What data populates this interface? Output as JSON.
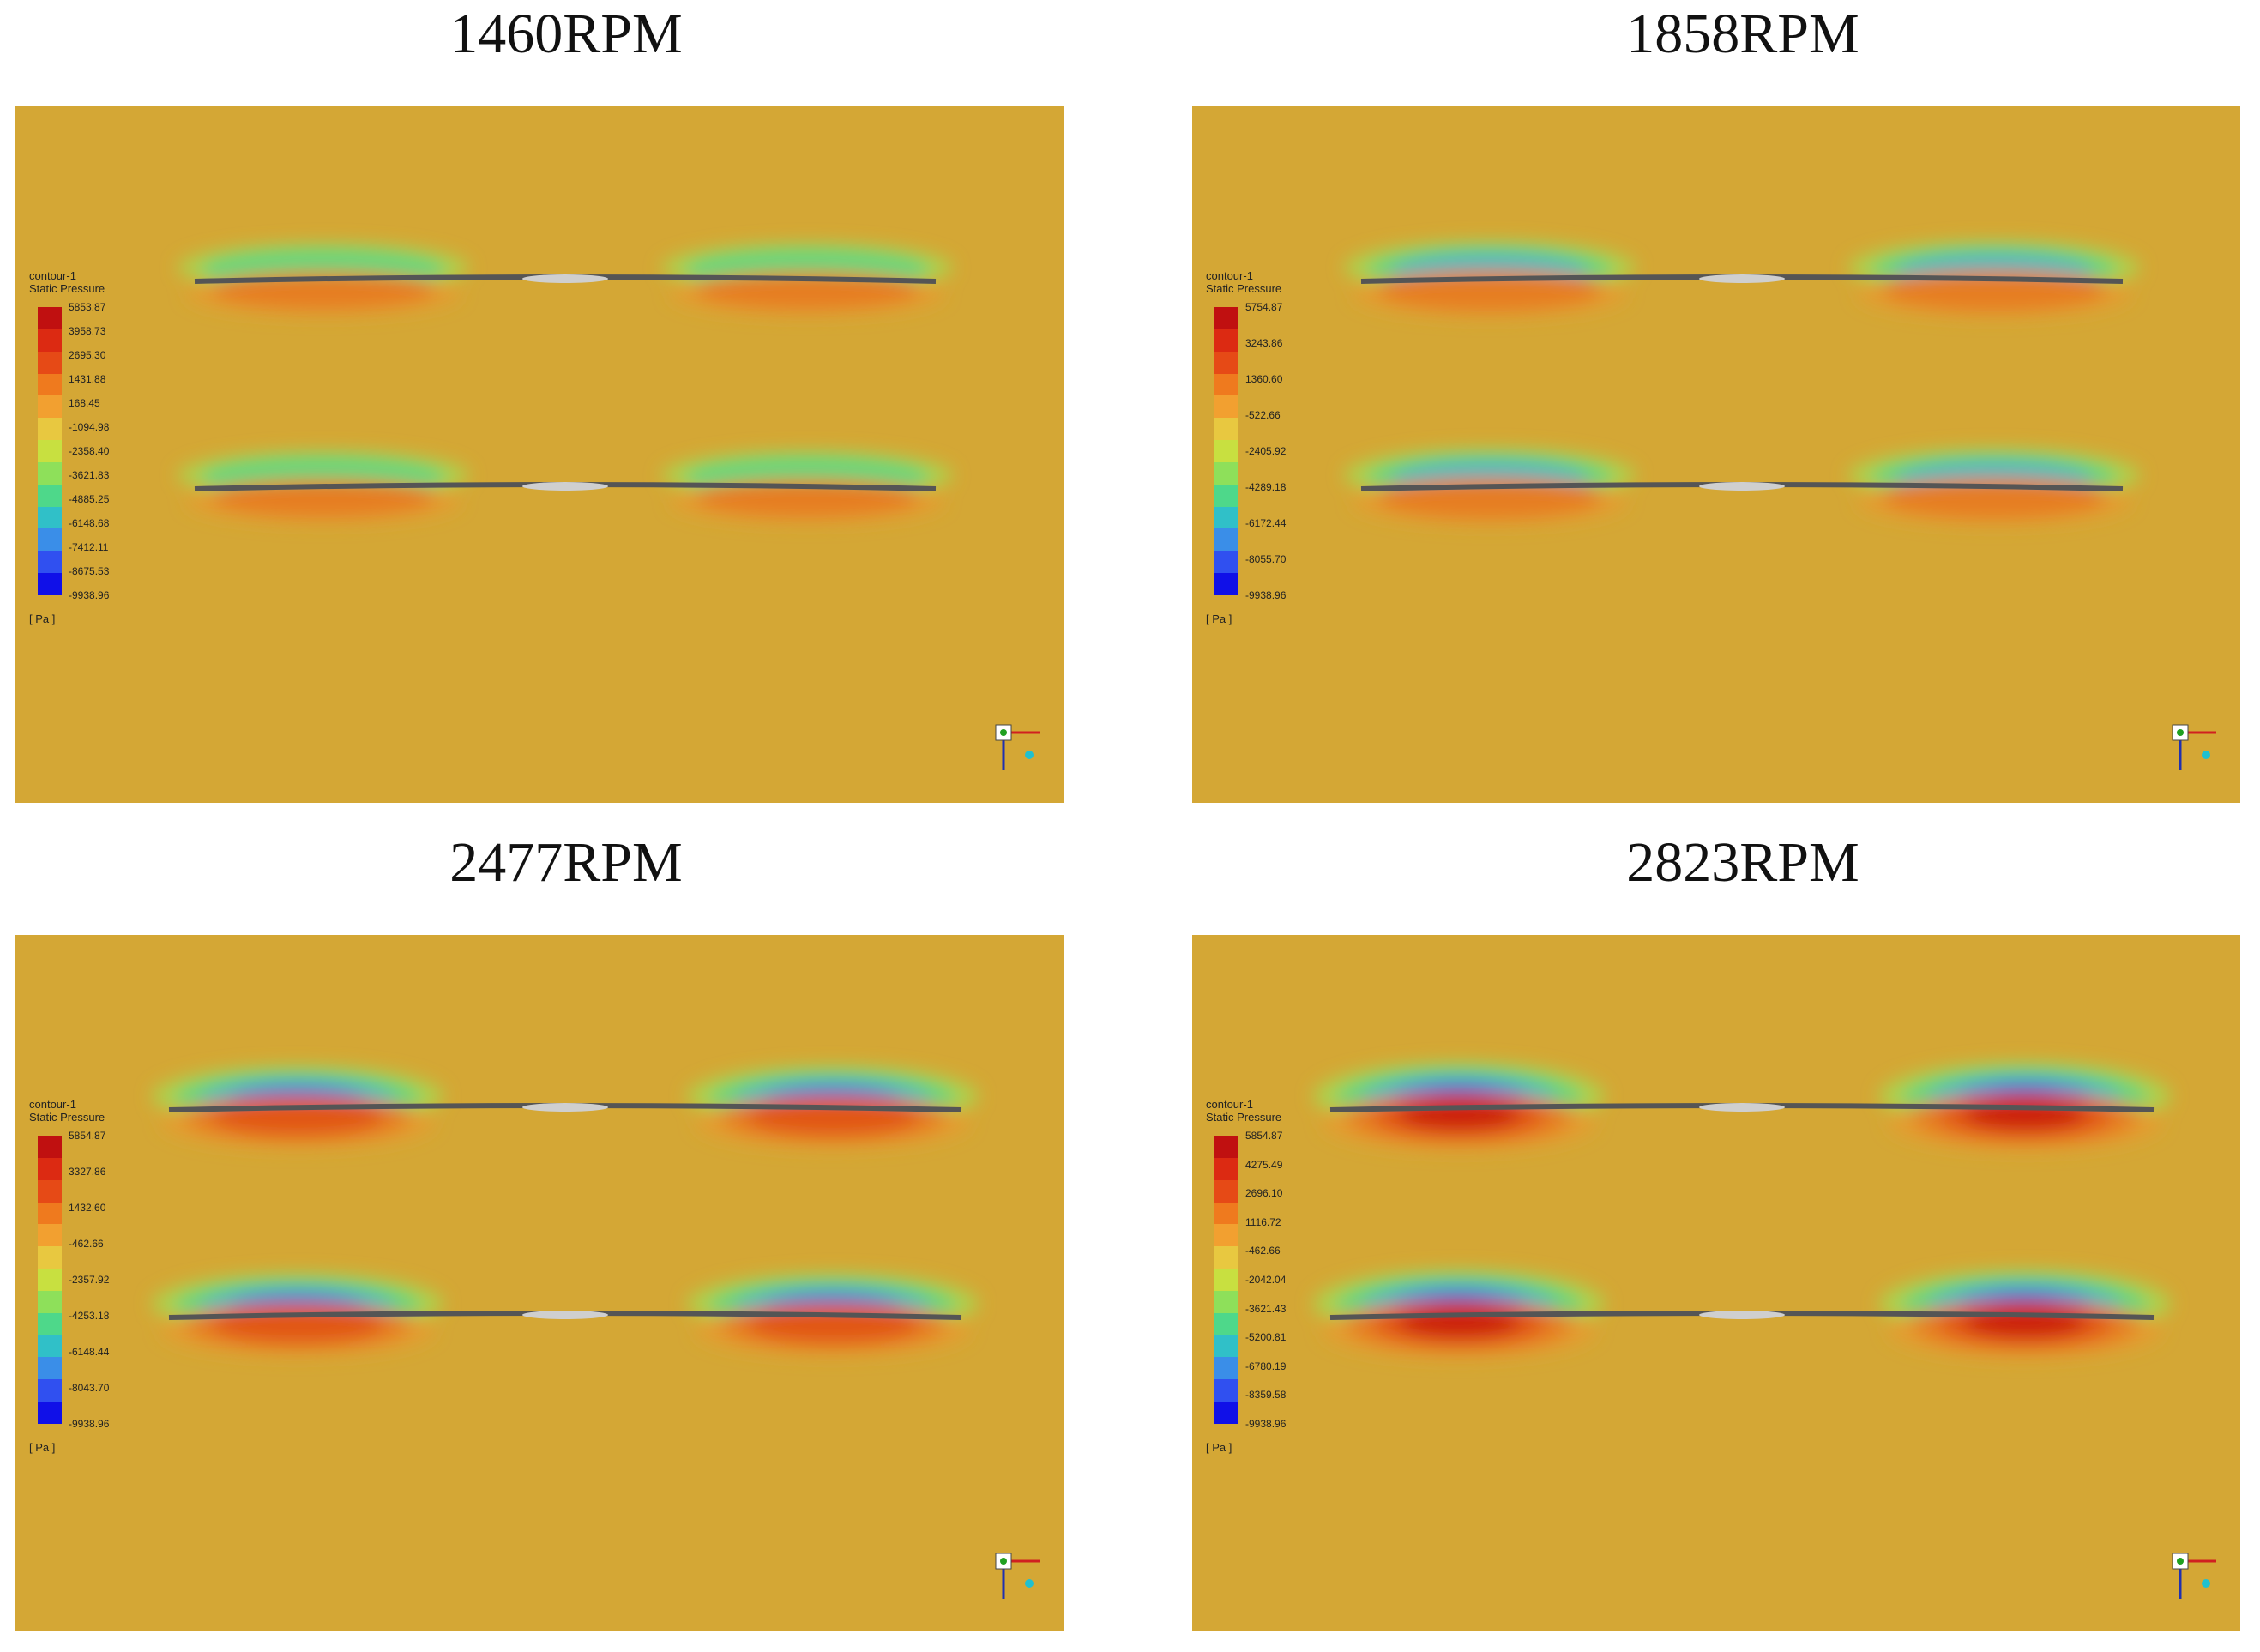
{
  "panels": [
    {
      "title": "1460RPM",
      "legend": {
        "name": "contour-1",
        "variable": "Static Pressure",
        "unit": "[ Pa ]",
        "ticks": [
          "5853.87",
          "3958.73",
          "2695.30",
          "1431.88",
          "168.45",
          "-1094.98",
          "-2358.40",
          "-3621.83",
          "-4885.25",
          "-6148.68",
          "-7412.11",
          "-8675.53",
          "-9938.96"
        ]
      },
      "intensity": 0.2
    },
    {
      "title": "1858RPM",
      "legend": {
        "name": "contour-1",
        "variable": "Static Pressure",
        "unit": "[ Pa ]",
        "ticks": [
          "5754.87",
          "3243.86",
          "1360.60",
          "-522.66",
          "-2405.92",
          "-4289.18",
          "-6172.44",
          "-8055.70",
          "-9938.96"
        ]
      },
      "intensity": 0.4
    },
    {
      "title": "2477RPM",
      "legend": {
        "name": "contour-1",
        "variable": "Static Pressure",
        "unit": "[ Pa ]",
        "ticks": [
          "5854.87",
          "3327.86",
          "1432.60",
          "-462.66",
          "-2357.92",
          "-4253.18",
          "-6148.44",
          "-8043.70",
          "-9938.96"
        ]
      },
      "intensity": 0.7
    },
    {
      "title": "2823RPM",
      "legend": {
        "name": "contour-1",
        "variable": "Static Pressure",
        "unit": "[ Pa ]",
        "ticks": [
          "5854.87",
          "4275.49",
          "2696.10",
          "1116.72",
          "-462.66",
          "-2042.04",
          "-3621.43",
          "-5200.81",
          "-6780.19",
          "-8359.58",
          "-9938.96"
        ]
      },
      "intensity": 1.0
    }
  ],
  "colors": {
    "background": "#d4a735",
    "scale": [
      "#c01010",
      "#dc2a12",
      "#e64a16",
      "#ef7a1e",
      "#f2a030",
      "#e8c840",
      "#c8e040",
      "#8ee05a",
      "#4ed88a",
      "#30c0c8",
      "#3a8ee8",
      "#3050f0",
      "#1010e8"
    ]
  },
  "icons": [
    "axis-triad-icon"
  ]
}
